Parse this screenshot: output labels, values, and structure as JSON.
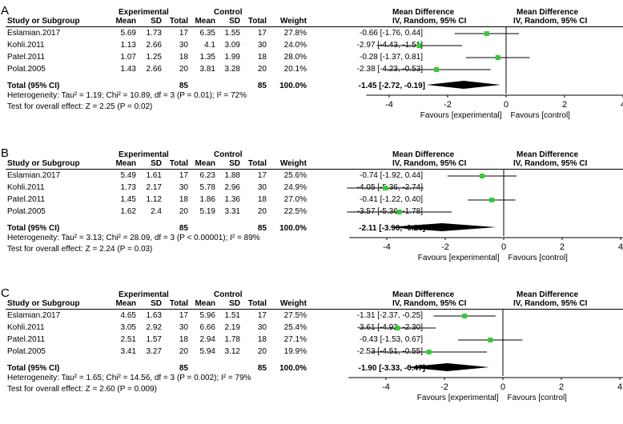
{
  "headers": {
    "study": "Study or Subgroup",
    "experimental": "Experimental",
    "control": "Control",
    "mean": "Mean",
    "sd": "SD",
    "total": "Total",
    "weight": "Weight",
    "md": "Mean Difference",
    "method": "IV, Random, 95% CI",
    "total_row": "Total (95% CI)",
    "favours_left": "Favours [experimental]",
    "favours_right": "Favours [control]"
  },
  "chart_data": [
    {
      "type": "forest",
      "panel": "A",
      "studies": [
        {
          "name": "Eslamian.2017",
          "exp_mean": "5.69",
          "exp_sd": "1.73",
          "exp_total": "17",
          "ctl_mean": "6.35",
          "ctl_sd": "1.55",
          "ctl_total": "17",
          "weight": "27.8%",
          "ci_text": "-0.66 [-1.76, 0.44]",
          "md": -0.66,
          "lo": -1.76,
          "hi": 0.44
        },
        {
          "name": "Kohli.2011",
          "exp_mean": "1.13",
          "exp_sd": "2.66",
          "exp_total": "30",
          "ctl_mean": "4.1",
          "ctl_sd": "3.09",
          "ctl_total": "30",
          "weight": "24.0%",
          "ci_text": "-2.97 [-4.43, -1.51]",
          "md": -2.97,
          "lo": -4.43,
          "hi": -1.51
        },
        {
          "name": "Patel.2011",
          "exp_mean": "1.07",
          "exp_sd": "1.25",
          "exp_total": "18",
          "ctl_mean": "1.35",
          "ctl_sd": "1.99",
          "ctl_total": "18",
          "weight": "28.0%",
          "ci_text": "-0.28 [-1.37, 0.81]",
          "md": -0.28,
          "lo": -1.37,
          "hi": 0.81
        },
        {
          "name": "Polat.2005",
          "exp_mean": "1.43",
          "exp_sd": "2.66",
          "exp_total": "20",
          "ctl_mean": "3.81",
          "ctl_sd": "3.28",
          "ctl_total": "20",
          "weight": "20.1%",
          "ci_text": "-2.38 [-4.23, -0.53]",
          "md": -2.38,
          "lo": -4.23,
          "hi": -0.53
        }
      ],
      "total": {
        "exp_total": "85",
        "ctl_total": "85",
        "weight": "100.0%",
        "ci_text": "-1.45 [-2.72, -0.19]",
        "md": -1.45,
        "lo": -2.72,
        "hi": -0.19
      },
      "heterogeneity": "Heterogeneity: Tau² = 1.19; Chi² = 10.89, df = 3 (P = 0.01); I² = 72%",
      "overall": "Test for overall effect: Z = 2.25 (P = 0.02)",
      "xlim": [
        -5,
        5
      ],
      "ticks": [
        -4,
        -2,
        0,
        2,
        4
      ]
    },
    {
      "type": "forest",
      "panel": "B",
      "studies": [
        {
          "name": "Eslamian.2017",
          "exp_mean": "5.49",
          "exp_sd": "1.61",
          "exp_total": "17",
          "ctl_mean": "6.23",
          "ctl_sd": "1.88",
          "ctl_total": "17",
          "weight": "25.6%",
          "ci_text": "-0.74 [-1.92, 0.44]",
          "md": -0.74,
          "lo": -1.92,
          "hi": 0.44
        },
        {
          "name": "Kohli.2011",
          "exp_mean": "1.73",
          "exp_sd": "2.17",
          "exp_total": "30",
          "ctl_mean": "5.78",
          "ctl_sd": "2.96",
          "ctl_total": "30",
          "weight": "24.9%",
          "ci_text": "-4.05 [-5.36, -2.74]",
          "md": -4.05,
          "lo": -5.36,
          "hi": -2.74
        },
        {
          "name": "Patel.2011",
          "exp_mean": "1.45",
          "exp_sd": "1.12",
          "exp_total": "18",
          "ctl_mean": "1.86",
          "ctl_sd": "1.36",
          "ctl_total": "18",
          "weight": "27.0%",
          "ci_text": "-0.41 [-1.22, 0.40]",
          "md": -0.41,
          "lo": -1.22,
          "hi": 0.4
        },
        {
          "name": "Polat.2005",
          "exp_mean": "1.62",
          "exp_sd": "2.4",
          "exp_total": "20",
          "ctl_mean": "5.19",
          "ctl_sd": "3.31",
          "ctl_total": "20",
          "weight": "22.5%",
          "ci_text": "-3.57 [-5.36, -1.78]",
          "md": -3.57,
          "lo": -5.36,
          "hi": -1.78
        }
      ],
      "total": {
        "exp_total": "85",
        "ctl_total": "85",
        "weight": "100.0%",
        "ci_text": "-2.11 [-3.96, -0.26]",
        "md": -2.11,
        "lo": -3.96,
        "hi": -0.26
      },
      "heterogeneity": "Heterogeneity: Tau² = 3.13; Chi² = 28.09, df = 3 (P < 0.00001); I² = 89%",
      "overall": "Test for overall effect: Z = 2.24 (P = 0.03)",
      "xlim": [
        -5.5,
        5
      ],
      "ticks": [
        -4,
        -2,
        0,
        2,
        4
      ]
    },
    {
      "type": "forest",
      "panel": "C",
      "studies": [
        {
          "name": "Eslamian.2017",
          "exp_mean": "4.65",
          "exp_sd": "1.63",
          "exp_total": "17",
          "ctl_mean": "5.96",
          "ctl_sd": "1.51",
          "ctl_total": "17",
          "weight": "27.5%",
          "ci_text": "-1.31 [-2.37, -0.25]",
          "md": -1.31,
          "lo": -2.37,
          "hi": -0.25
        },
        {
          "name": "Kohli.2011",
          "exp_mean": "3.05",
          "exp_sd": "2.92",
          "exp_total": "30",
          "ctl_mean": "6.66",
          "ctl_sd": "2.19",
          "ctl_total": "30",
          "weight": "25.4%",
          "ci_text": "-3.61 [-4.92, -2.30]",
          "md": -3.61,
          "lo": -4.92,
          "hi": -2.3
        },
        {
          "name": "Patel.2011",
          "exp_mean": "2.51",
          "exp_sd": "1.57",
          "exp_total": "18",
          "ctl_mean": "2.94",
          "ctl_sd": "1.78",
          "ctl_total": "18",
          "weight": "27.1%",
          "ci_text": "-0.43 [-1.53, 0.67]",
          "md": -0.43,
          "lo": -1.53,
          "hi": 0.67
        },
        {
          "name": "Polat.2005",
          "exp_mean": "3.41",
          "exp_sd": "3.27",
          "exp_total": "20",
          "ctl_mean": "5.94",
          "ctl_sd": "3.12",
          "ctl_total": "20",
          "weight": "19.9%",
          "ci_text": "-2.53 [-4.51, -0.55]",
          "md": -2.53,
          "lo": -4.51,
          "hi": -0.55
        }
      ],
      "total": {
        "exp_total": "85",
        "ctl_total": "85",
        "weight": "100.0%",
        "ci_text": "-1.90 [-3.33, -0.47]",
        "md": -1.9,
        "lo": -3.33,
        "hi": -0.47
      },
      "heterogeneity": "Heterogeneity: Tau² = 1.65; Chi² = 14.56, df = 3 (P = 0.002); I² = 79%",
      "overall": "Test for overall effect: Z = 2.60 (P = 0.009)",
      "xlim": [
        -5.5,
        5
      ],
      "ticks": [
        -4,
        -2,
        0,
        2,
        4
      ]
    }
  ],
  "colors": {
    "square": "#33cc33",
    "diamond": "#000000",
    "line": "#000000"
  }
}
